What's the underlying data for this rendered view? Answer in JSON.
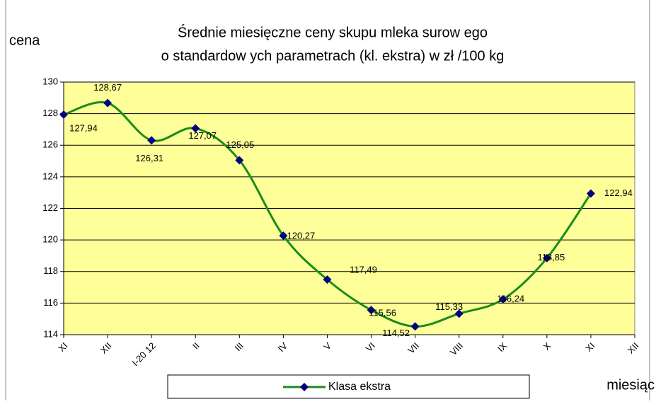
{
  "chart_data": {
    "type": "line",
    "title": [
      "Średnie miesięczne ceny skupu mleka surow ego",
      "o standardow ych parametrach (kl. ekstra) w  zł /100 kg"
    ],
    "y_label": "cena",
    "x_label": "miesiąc",
    "categories": [
      "XI",
      "XII",
      "I-20 12",
      "II",
      "III",
      "IV",
      "V",
      "VI",
      "VII",
      "VIII",
      "IX",
      "X",
      "XI",
      "XII"
    ],
    "series": [
      {
        "name": "Klasa ekstra",
        "color": "#1a8c1a",
        "marker_color": "#000080",
        "values": [
          127.94,
          128.67,
          126.31,
          127.07,
          125.05,
          120.27,
          117.49,
          115.56,
          114.52,
          115.33,
          116.24,
          118.85,
          122.94,
          null
        ],
        "value_labels": [
          "127,94",
          "128,67",
          "126,31",
          "127,07",
          "125,05",
          "120,27",
          "117,49",
          "115,56",
          "114,52",
          "115,33",
          "116,24",
          "118,85",
          "122,94",
          null
        ]
      }
    ],
    "ylim": [
      114,
      130
    ],
    "yticks": [
      114,
      116,
      118,
      120,
      122,
      124,
      126,
      128,
      130
    ],
    "grid": true,
    "legend": "bottom"
  }
}
